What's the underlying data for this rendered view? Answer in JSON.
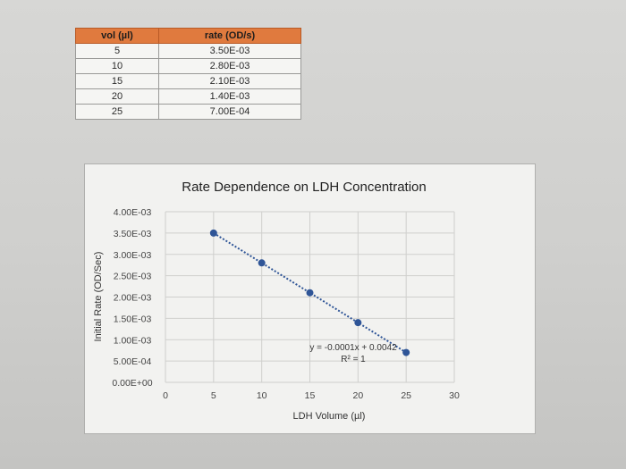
{
  "table": {
    "headers": [
      "vol (µl)",
      "rate (OD/s)"
    ],
    "rows": [
      [
        "5",
        "3.50E-03"
      ],
      [
        "10",
        "2.80E-03"
      ],
      [
        "15",
        "2.10E-03"
      ],
      [
        "20",
        "1.40E-03"
      ],
      [
        "25",
        "7.00E-04"
      ]
    ],
    "header_color": "#e07a3e"
  },
  "chart_data": {
    "type": "scatter",
    "title": "Rate Dependence on LDH Concentration",
    "xlabel": "LDH Volume (µl)",
    "ylabel": "Initial Rate (OD/Sec)",
    "xlim": [
      0,
      30
    ],
    "ylim": [
      0,
      0.004
    ],
    "x_ticks": [
      0,
      5,
      10,
      15,
      20,
      25,
      30
    ],
    "x_tick_labels": [
      "0",
      "5",
      "10",
      "15",
      "20",
      "25",
      "30"
    ],
    "y_ticks": [
      0,
      0.0005,
      0.001,
      0.0015,
      0.002,
      0.0025,
      0.003,
      0.0035,
      0.004
    ],
    "y_tick_labels": [
      "0.00E+00",
      "5.00E-04",
      "1.00E-03",
      "1.50E-03",
      "2.00E-03",
      "2.50E-03",
      "3.00E-03",
      "3.50E-03",
      "4.00E-03"
    ],
    "grid": true,
    "series": [
      {
        "x": [
          5,
          10,
          15,
          20,
          25
        ],
        "y": [
          0.0035,
          0.0028,
          0.0021,
          0.0014,
          0.0007
        ],
        "color": "#2f5597"
      }
    ],
    "trendline": {
      "type": "linear",
      "x_range": [
        5,
        25
      ],
      "equation": "y = -0.0001x + 0.0042",
      "r_squared": "R² = 1",
      "color": "#2f5597"
    }
  }
}
